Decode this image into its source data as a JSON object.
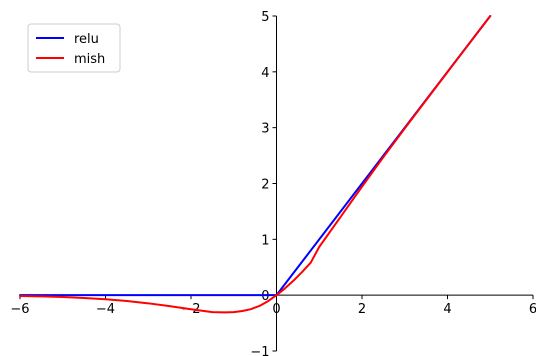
{
  "chart_data": {
    "type": "line",
    "title": "",
    "xlabel": "",
    "ylabel": "",
    "xlim": [
      -6,
      6
    ],
    "ylim": [
      -1,
      5
    ],
    "x_ticks": [
      -6,
      -4,
      -2,
      0,
      2,
      4,
      6
    ],
    "y_ticks": [
      -1,
      0,
      1,
      2,
      3,
      4,
      5
    ],
    "x_tick_labels": [
      "−6",
      "−4",
      "−2",
      "0",
      "2",
      "4",
      "6"
    ],
    "y_tick_labels": [
      "−1",
      "0",
      "1",
      "2",
      "3",
      "4",
      "5"
    ],
    "grid": false,
    "legend": "upper-left",
    "spines": "centered",
    "series": [
      {
        "name": "relu",
        "color": "#0000ff",
        "x": [
          -6,
          0,
          5
        ],
        "y": [
          0,
          0,
          5
        ]
      },
      {
        "name": "mish",
        "color": "#ff0000",
        "x": [
          -6,
          -5.5,
          -5,
          -4.5,
          -4,
          -3.5,
          -3,
          -2.5,
          -2,
          -1.5,
          -1.2,
          -1,
          -0.8,
          -0.6,
          -0.4,
          -0.2,
          0,
          0.2,
          0.4,
          0.6,
          0.8,
          1,
          1.5,
          2,
          2.5,
          3,
          3.5,
          4,
          4.5,
          5
        ],
        "y": [
          -0.015,
          -0.022,
          -0.034,
          -0.05,
          -0.073,
          -0.105,
          -0.146,
          -0.196,
          -0.252,
          -0.303,
          -0.308,
          -0.303,
          -0.283,
          -0.251,
          -0.193,
          -0.108,
          0,
          0.123,
          0.262,
          0.416,
          0.582,
          0.865,
          1.404,
          1.944,
          2.474,
          2.987,
          3.494,
          3.997,
          4.5,
          5.0
        ]
      }
    ]
  }
}
